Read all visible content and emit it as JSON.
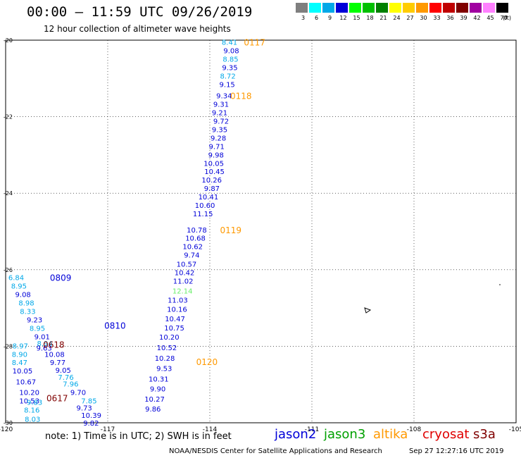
{
  "header": {
    "title": "00:00 – 11:59 UTC 09/26/2019",
    "subtitle": "12 hour collection of altimeter wave heights"
  },
  "legend": {
    "unit": "(ft)",
    "bins": [
      {
        "label": "3",
        "color": "#7f7f7f"
      },
      {
        "label": "6",
        "color": "#00ffff"
      },
      {
        "label": "9",
        "color": "#00a8e8"
      },
      {
        "label": "12",
        "color": "#0000d8"
      },
      {
        "label": "15",
        "color": "#00ff00"
      },
      {
        "label": "18",
        "color": "#00c000"
      },
      {
        "label": "21",
        "color": "#008000"
      },
      {
        "label": "24",
        "color": "#ffff00"
      },
      {
        "label": "27",
        "color": "#ffcc00"
      },
      {
        "label": "30",
        "color": "#ff9900"
      },
      {
        "label": "33",
        "color": "#ff0000"
      },
      {
        "label": "36",
        "color": "#c00000"
      },
      {
        "label": "39",
        "color": "#800000"
      },
      {
        "label": "42",
        "color": "#a000a0"
      },
      {
        "label": "45",
        "color": "#ff80ff"
      },
      {
        "label": "70",
        "color": "#000000"
      }
    ]
  },
  "axes": {
    "x_ticks": [
      "-120",
      "-117",
      "-114",
      "-111",
      "-108",
      "-105"
    ],
    "y_ticks": [
      "-20",
      "-22",
      "-24",
      "-26",
      "-28",
      "-30"
    ]
  },
  "colors": {
    "jason2": "#0000d8",
    "jason3": "#00a000",
    "altika": "#ff9900",
    "cryosat": "#e00000",
    "s3a": "#800000",
    "light_blue": "#00a8e8",
    "green_value": "#66ee66"
  },
  "tracks": [
    {
      "labels": [
        {
          "text": "0117",
          "lon": -113.0,
          "lat": -20.05,
          "color": "#ff9900"
        },
        {
          "text": "0118",
          "lon": -113.4,
          "lat": -21.45,
          "color": "#ff9900"
        },
        {
          "text": "0119",
          "lon": -113.7,
          "lat": -24.95,
          "color": "#ff9900"
        },
        {
          "text": "0120",
          "lon": -114.4,
          "lat": -28.4,
          "color": "#ff9900"
        },
        {
          "text": "0809",
          "lon": -118.7,
          "lat": -26.2,
          "color": "#0000d8"
        },
        {
          "text": "0810",
          "lon": -117.1,
          "lat": -27.45,
          "color": "#0000d8"
        },
        {
          "text": "0618",
          "lon": -118.9,
          "lat": -27.95,
          "color": "#800000"
        },
        {
          "text": "0617",
          "lon": -118.8,
          "lat": -29.35,
          "color": "#800000"
        }
      ],
      "values": [
        {
          "text": "8.41",
          "lon": -113.65,
          "lat": -20.05,
          "color": "#00a8e8"
        },
        {
          "text": "9.08",
          "lon": -113.6,
          "lat": -20.27,
          "color": "#0000d8"
        },
        {
          "text": "8.85",
          "lon": -113.62,
          "lat": -20.49,
          "color": "#00a8e8"
        },
        {
          "text": "9.35",
          "lon": -113.64,
          "lat": -20.71,
          "color": "#0000d8"
        },
        {
          "text": "8.72",
          "lon": -113.7,
          "lat": -20.93,
          "color": "#00a8e8"
        },
        {
          "text": "9.15",
          "lon": -113.72,
          "lat": -21.15,
          "color": "#0000d8"
        },
        {
          "text": "9.34",
          "lon": -113.81,
          "lat": -21.45,
          "color": "#0000d8"
        },
        {
          "text": "9.31",
          "lon": -113.9,
          "lat": -21.67,
          "color": "#0000d8"
        },
        {
          "text": "9.21",
          "lon": -113.94,
          "lat": -21.89,
          "color": "#0000d8"
        },
        {
          "text": "9.72",
          "lon": -113.9,
          "lat": -22.11,
          "color": "#0000d8"
        },
        {
          "text": "9.35",
          "lon": -113.94,
          "lat": -22.33,
          "color": "#0000d8"
        },
        {
          "text": "9.28",
          "lon": -113.98,
          "lat": -22.55,
          "color": "#0000d8"
        },
        {
          "text": "9.71",
          "lon": -114.03,
          "lat": -22.77,
          "color": "#0000d8"
        },
        {
          "text": "9.98",
          "lon": -114.05,
          "lat": -22.99,
          "color": "#0000d8"
        },
        {
          "text": "10.05",
          "lon": -114.18,
          "lat": -23.21,
          "color": "#0000d8"
        },
        {
          "text": "10.45",
          "lon": -114.16,
          "lat": -23.43,
          "color": "#0000d8"
        },
        {
          "text": "10.26",
          "lon": -114.24,
          "lat": -23.65,
          "color": "#0000d8"
        },
        {
          "text": "9.87",
          "lon": -114.17,
          "lat": -23.87,
          "color": "#0000d8"
        },
        {
          "text": "10.41",
          "lon": -114.34,
          "lat": -24.09,
          "color": "#0000d8"
        },
        {
          "text": "10.60",
          "lon": -114.44,
          "lat": -24.31,
          "color": "#0000d8"
        },
        {
          "text": "11.15",
          "lon": -114.5,
          "lat": -24.53,
          "color": "#0000d8"
        },
        {
          "text": "10.78",
          "lon": -114.68,
          "lat": -24.95,
          "color": "#0000d8"
        },
        {
          "text": "10.68",
          "lon": -114.72,
          "lat": -25.17,
          "color": "#0000d8"
        },
        {
          "text": "10.62",
          "lon": -114.8,
          "lat": -25.39,
          "color": "#0000d8"
        },
        {
          "text": "9.74",
          "lon": -114.76,
          "lat": -25.61,
          "color": "#0000d8"
        },
        {
          "text": "10.57",
          "lon": -114.98,
          "lat": -25.85,
          "color": "#0000d8"
        },
        {
          "text": "10.42",
          "lon": -115.04,
          "lat": -26.07,
          "color": "#0000d8"
        },
        {
          "text": "11.02",
          "lon": -115.08,
          "lat": -26.29,
          "color": "#0000d8"
        },
        {
          "text": "12.14",
          "lon": -115.1,
          "lat": -26.55,
          "color": "#66ee66"
        },
        {
          "text": "11.03",
          "lon": -115.24,
          "lat": -26.79,
          "color": "#0000d8"
        },
        {
          "text": "10.16",
          "lon": -115.26,
          "lat": -27.03,
          "color": "#0000d8"
        },
        {
          "text": "10.47",
          "lon": -115.32,
          "lat": -27.27,
          "color": "#0000d8"
        },
        {
          "text": "10.75",
          "lon": -115.34,
          "lat": -27.51,
          "color": "#0000d8"
        },
        {
          "text": "10.20",
          "lon": -115.49,
          "lat": -27.75,
          "color": "#0000d8"
        },
        {
          "text": "10.52",
          "lon": -115.56,
          "lat": -28.03,
          "color": "#0000d8"
        },
        {
          "text": "10.28",
          "lon": -115.62,
          "lat": -28.31,
          "color": "#0000d8"
        },
        {
          "text": "9.53",
          "lon": -115.57,
          "lat": -28.57,
          "color": "#0000d8"
        },
        {
          "text": "10.31",
          "lon": -115.8,
          "lat": -28.85,
          "color": "#0000d8"
        },
        {
          "text": "9.90",
          "lon": -115.76,
          "lat": -29.11,
          "color": "#0000d8"
        },
        {
          "text": "10.27",
          "lon": -115.92,
          "lat": -29.37,
          "color": "#0000d8"
        },
        {
          "text": "9.86",
          "lon": -115.9,
          "lat": -29.63,
          "color": "#0000d8"
        },
        {
          "text": "6.84",
          "lon": -119.92,
          "lat": -26.2,
          "color": "#00a8e8"
        },
        {
          "text": "8.95",
          "lon": -119.84,
          "lat": -26.42,
          "color": "#00a8e8"
        },
        {
          "text": "9.08",
          "lon": -119.72,
          "lat": -26.64,
          "color": "#0000d8"
        },
        {
          "text": "8.98",
          "lon": -119.62,
          "lat": -26.86,
          "color": "#00a8e8"
        },
        {
          "text": "8.33",
          "lon": -119.58,
          "lat": -27.08,
          "color": "#00a8e8"
        },
        {
          "text": "9.23",
          "lon": -119.38,
          "lat": -27.3,
          "color": "#0000d8"
        },
        {
          "text": "8.95",
          "lon": -119.3,
          "lat": -27.52,
          "color": "#00a8e8"
        },
        {
          "text": "9.01",
          "lon": -119.16,
          "lat": -27.74,
          "color": "#0000d8"
        },
        {
          "text": "8.94",
          "lon": -119.08,
          "lat": -27.92,
          "color": "#00a8e8"
        },
        {
          "text": "9.63",
          "lon": -119.1,
          "lat": -28.04,
          "color": "#0000d8"
        },
        {
          "text": "8.97",
          "lon": -119.8,
          "lat": -27.98,
          "color": "#00a8e8"
        },
        {
          "text": "8.90",
          "lon": -119.82,
          "lat": -28.2,
          "color": "#00a8e8"
        },
        {
          "text": "10.08",
          "lon": -118.86,
          "lat": -28.2,
          "color": "#0000d8"
        },
        {
          "text": "8.47",
          "lon": -119.82,
          "lat": -28.42,
          "color": "#00a8e8"
        },
        {
          "text": "9.77",
          "lon": -118.7,
          "lat": -28.42,
          "color": "#0000d8"
        },
        {
          "text": "10.05",
          "lon": -119.8,
          "lat": -28.64,
          "color": "#0000d8"
        },
        {
          "text": "9.05",
          "lon": -118.54,
          "lat": -28.62,
          "color": "#0000d8"
        },
        {
          "text": "7.96",
          "lon": -118.32,
          "lat": -28.98,
          "color": "#00a8e8"
        },
        {
          "text": "7.76",
          "lon": -118.46,
          "lat": -28.8,
          "color": "#00a8e8"
        },
        {
          "text": "10.67",
          "lon": -119.7,
          "lat": -28.92,
          "color": "#0000d8"
        },
        {
          "text": "10.20",
          "lon": -119.6,
          "lat": -29.2,
          "color": "#0000d8"
        },
        {
          "text": "9.70",
          "lon": -118.1,
          "lat": -29.2,
          "color": "#0000d8"
        },
        {
          "text": "10.53",
          "lon": -119.6,
          "lat": -29.42,
          "color": "#0000d8"
        },
        {
          "text": "9.83",
          "lon": -119.38,
          "lat": -29.46,
          "color": "#00a8e8"
        },
        {
          "text": "7.85",
          "lon": -117.78,
          "lat": -29.42,
          "color": "#00a8e8"
        },
        {
          "text": "9.73",
          "lon": -117.92,
          "lat": -29.6,
          "color": "#0000d8"
        },
        {
          "text": "8.16",
          "lon": -119.46,
          "lat": -29.66,
          "color": "#00a8e8"
        },
        {
          "text": "10.39",
          "lon": -117.78,
          "lat": -29.8,
          "color": "#0000d8"
        },
        {
          "text": "8.03",
          "lon": -119.44,
          "lat": -29.9,
          "color": "#00a8e8"
        },
        {
          "text": "9.82",
          "lon": -117.72,
          "lat": -30.0,
          "color": "#0000d8"
        }
      ]
    }
  ],
  "footer": {
    "note": "note:  1) Time is in UTC;  2) SWH is in feet",
    "satellites": [
      "jason2",
      "jason3",
      "altika",
      "cryosat",
      "s3a"
    ],
    "credit": "NOAA/NESDIS Center for Satellite Applications and Research",
    "timestamp": "Sep 27 12:27:16 UTC 2019"
  }
}
